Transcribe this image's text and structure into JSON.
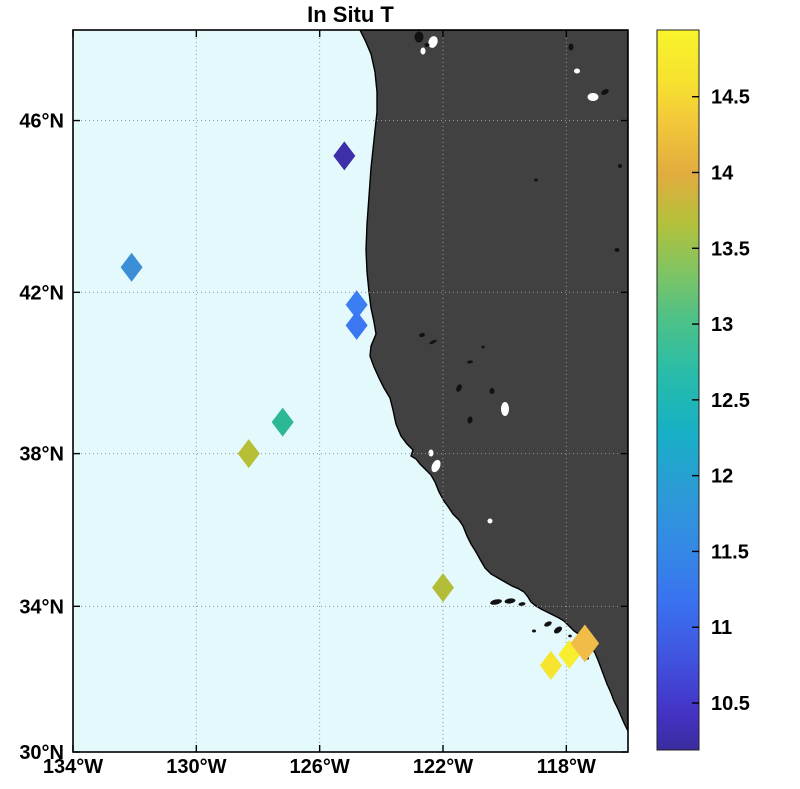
{
  "title": "In Situ T",
  "colors": {
    "ocean": "#e4f9fc",
    "land": "#414141",
    "coastline": "#000000",
    "lake": "#ffffff",
    "island": "#111111",
    "grid": "#8f999b",
    "parula_stops": [
      {
        "o": 0.0,
        "c": "#3a2c9e"
      },
      {
        "o": 0.05,
        "c": "#4432c4"
      },
      {
        "o": 0.12,
        "c": "#4150de"
      },
      {
        "o": 0.2,
        "c": "#3a70f0"
      },
      {
        "o": 0.28,
        "c": "#3489e6"
      },
      {
        "o": 0.36,
        "c": "#2c9bd5"
      },
      {
        "o": 0.44,
        "c": "#17b0c6"
      },
      {
        "o": 0.52,
        "c": "#27bcaa"
      },
      {
        "o": 0.6,
        "c": "#4ec287"
      },
      {
        "o": 0.67,
        "c": "#85c45f"
      },
      {
        "o": 0.73,
        "c": "#b2c13c"
      },
      {
        "o": 0.8,
        "c": "#e2ac3f"
      },
      {
        "o": 0.87,
        "c": "#f2c73a"
      },
      {
        "o": 0.93,
        "c": "#f6e22f"
      },
      {
        "o": 1.0,
        "c": "#f9f42b"
      }
    ]
  },
  "chart_data": {
    "type": "scatter",
    "title": "In Situ T",
    "marker": "diamond",
    "grid": "dotted",
    "projection": "mercator",
    "xlim": [
      -134,
      -116
    ],
    "ylim": [
      30,
      48
    ],
    "x_ticks": [
      {
        "lon": -134,
        "label": "134°W"
      },
      {
        "lon": -130,
        "label": "130°W"
      },
      {
        "lon": -126,
        "label": "126°W"
      },
      {
        "lon": -122,
        "label": "122°W"
      },
      {
        "lon": -118,
        "label": "118°W"
      }
    ],
    "y_ticks": [
      {
        "lat": 46,
        "label": "46°N"
      },
      {
        "lat": 42,
        "label": "42°N"
      },
      {
        "lat": 38,
        "label": "38°N"
      },
      {
        "lat": 34,
        "label": "34°N"
      },
      {
        "lat": 30,
        "label": "30°N"
      }
    ],
    "colorbar": {
      "position": "right",
      "range": [
        10.19,
        14.94
      ],
      "ticks": [
        {
          "value": 14.5,
          "label": "14.5"
        },
        {
          "value": 14.0,
          "label": "14"
        },
        {
          "value": 13.5,
          "label": "13.5"
        },
        {
          "value": 13.0,
          "label": "13"
        },
        {
          "value": 12.5,
          "label": "12.5"
        },
        {
          "value": 12.0,
          "label": "12"
        },
        {
          "value": 11.5,
          "label": "11.5"
        },
        {
          "value": 11.0,
          "label": "11"
        },
        {
          "value": 10.5,
          "label": "10.5"
        }
      ]
    },
    "points": [
      {
        "lon": -125.2,
        "lat": 45.2,
        "value": 10.4,
        "color": "#3d2fa8"
      },
      {
        "lon": -132.1,
        "lat": 42.6,
        "value": 11.9,
        "color": "#3c8fd6"
      },
      {
        "lon": -124.8,
        "lat": 41.7,
        "value": 11.5,
        "color": "#3b7ef2"
      },
      {
        "lon": -124.8,
        "lat": 41.2,
        "value": 11.4,
        "color": "#3a77f0"
      },
      {
        "lon": -127.2,
        "lat": 38.8,
        "value": 12.8,
        "color": "#2cb795"
      },
      {
        "lon": -128.3,
        "lat": 38.0,
        "value": 13.7,
        "color": "#b7bf36"
      },
      {
        "lon": -122.0,
        "lat": 34.5,
        "value": 13.7,
        "color": "#b4bd38"
      },
      {
        "lon": -118.5,
        "lat": 32.4,
        "value": 14.7,
        "color": "#f6e42e"
      },
      {
        "lon": -117.9,
        "lat": 32.7,
        "value": 14.8,
        "color": "#f8ee30"
      },
      {
        "lon": -117.4,
        "lat": 33.0,
        "value": 14.3,
        "color": "#f1bc47",
        "scale": 1.3
      }
    ]
  }
}
